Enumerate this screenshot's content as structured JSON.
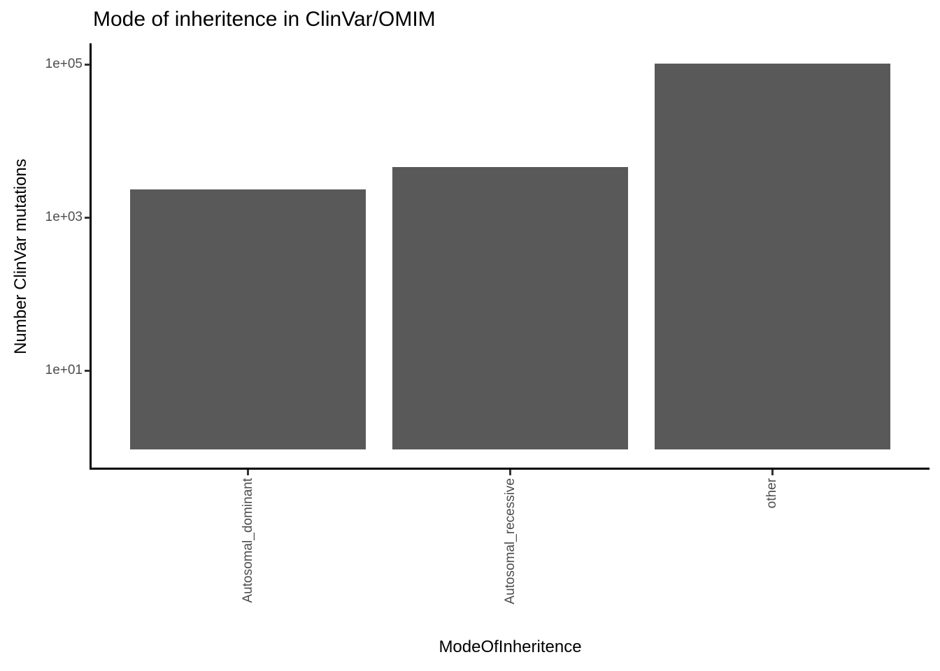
{
  "chart_data": {
    "type": "bar",
    "title": "Mode of inheritence in ClinVar/OMIM",
    "xlabel": "ModeOfInheritence",
    "ylabel": "Number ClinVar mutations",
    "categories": [
      "Autosomal_dominant",
      "Autosomal_recessive",
      "other"
    ],
    "values": [
      2300,
      4500,
      102000
    ],
    "yscale": "log10",
    "ylim": [
      1,
      130000
    ],
    "yticks": [
      {
        "value": 100000,
        "label": "1e+05"
      },
      {
        "value": 1000,
        "label": "1e+03"
      },
      {
        "value": 10,
        "label": "1e+01"
      }
    ],
    "bar_color": "#595959",
    "grid": false,
    "legend_position": "none",
    "theme": "classic",
    "text_color_axis": "#4d4d4d",
    "text_color_titles": "#000000"
  }
}
